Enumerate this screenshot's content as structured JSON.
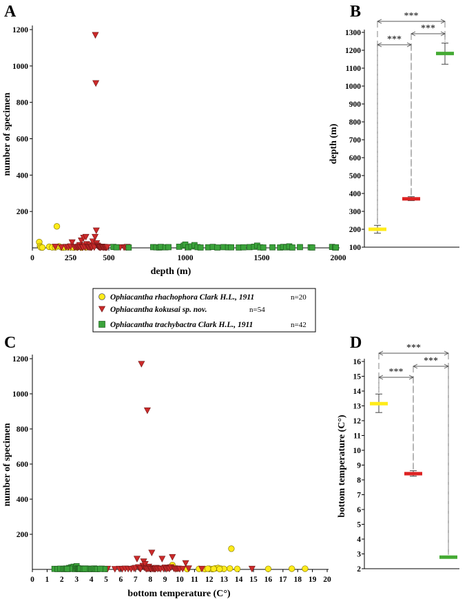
{
  "legend": {
    "entries": [
      {
        "name": "Ophiacantha rhachophora Clark H.L., 1911",
        "n": "n=20",
        "color": "#ffeb1a",
        "marker": "circle"
      },
      {
        "name": "Ophiacantha kokusai sp. nov.",
        "n": "n=54",
        "color": "#cc2a2a",
        "marker": "triangle-down"
      },
      {
        "name": "Ophiacantha trachybactra Clark H.L., 1911",
        "n": "n=42",
        "color": "#3aa33a",
        "marker": "square"
      }
    ]
  },
  "chart_data": [
    {
      "panel": "A",
      "type": "scatter",
      "xlabel": "depth (m)",
      "ylabel": "number of specimen",
      "xlim": [
        0,
        2000
      ],
      "ylim": [
        0,
        1200
      ],
      "xticks": [
        "0",
        "250",
        "500",
        "1000",
        "1500",
        "2000"
      ],
      "yticks": [
        "200",
        "400",
        "600",
        "800",
        "1000",
        "1200"
      ],
      "series": [
        {
          "name": "Ophiacantha rhachophora Clark H.L., 1911",
          "marker": "circle",
          "color": "#ffeb1a",
          "points": [
            [
              45,
              32
            ],
            [
              50,
              10
            ],
            [
              55,
              3
            ],
            [
              65,
              2
            ],
            [
              110,
              6
            ],
            [
              130,
              3
            ],
            [
              150,
              3
            ],
            [
              160,
              118
            ],
            [
              175,
              8
            ],
            [
              190,
              3
            ],
            [
              200,
              2
            ],
            [
              215,
              3
            ],
            [
              230,
              4
            ],
            [
              250,
              3
            ],
            [
              270,
              2
            ],
            [
              290,
              3
            ],
            [
              300,
              6
            ],
            [
              320,
              2
            ],
            [
              350,
              3
            ],
            [
              380,
              4
            ]
          ]
        },
        {
          "name": "Ophiacantha kokusai sp. nov.",
          "marker": "triangle-down",
          "color": "#cc2a2a",
          "points": [
            [
              150,
              6
            ],
            [
              190,
              3
            ],
            [
              220,
              5
            ],
            [
              235,
              3
            ],
            [
              250,
              8
            ],
            [
              260,
              30
            ],
            [
              275,
              3
            ],
            [
              285,
              5
            ],
            [
              295,
              2
            ],
            [
              300,
              4
            ],
            [
              305,
              8
            ],
            [
              310,
              15
            ],
            [
              315,
              2
            ],
            [
              320,
              40
            ],
            [
              325,
              5
            ],
            [
              330,
              2
            ],
            [
              335,
              55
            ],
            [
              340,
              12
            ],
            [
              345,
              3
            ],
            [
              350,
              60
            ],
            [
              355,
              20
            ],
            [
              360,
              4
            ],
            [
              365,
              7
            ],
            [
              370,
              2
            ],
            [
              375,
              15
            ],
            [
              380,
              3
            ],
            [
              385,
              2
            ],
            [
              390,
              5
            ],
            [
              395,
              35
            ],
            [
              400,
              10
            ],
            [
              405,
              3
            ],
            [
              410,
              60
            ],
            [
              412,
              1170
            ],
            [
              415,
              905
            ],
            [
              418,
              95
            ],
            [
              420,
              25
            ],
            [
              425,
              12
            ],
            [
              430,
              8
            ],
            [
              435,
              5
            ],
            [
              440,
              3
            ],
            [
              445,
              2
            ],
            [
              450,
              4
            ],
            [
              455,
              6
            ],
            [
              460,
              3
            ],
            [
              465,
              2
            ],
            [
              470,
              5
            ],
            [
              475,
              2
            ],
            [
              480,
              3
            ],
            [
              485,
              2
            ],
            [
              490,
              4
            ],
            [
              575,
              3
            ],
            [
              600,
              2
            ],
            [
              610,
              3
            ],
            [
              620,
              5
            ]
          ]
        },
        {
          "name": "Ophiacantha trachybactra Clark H.L., 1911",
          "marker": "square",
          "color": "#3aa33a",
          "points": [
            [
              530,
              5
            ],
            [
              550,
              3
            ],
            [
              630,
              2
            ],
            [
              790,
              4
            ],
            [
              810,
              3
            ],
            [
              830,
              2
            ],
            [
              840,
              5
            ],
            [
              870,
              3
            ],
            [
              890,
              4
            ],
            [
              960,
              6
            ],
            [
              990,
              12
            ],
            [
              1000,
              18
            ],
            [
              1020,
              3
            ],
            [
              1040,
              8
            ],
            [
              1060,
              15
            ],
            [
              1080,
              4
            ],
            [
              1100,
              2
            ],
            [
              1150,
              3
            ],
            [
              1180,
              5
            ],
            [
              1210,
              2
            ],
            [
              1250,
              4
            ],
            [
              1280,
              3
            ],
            [
              1300,
              3
            ],
            [
              1350,
              2
            ],
            [
              1380,
              3
            ],
            [
              1420,
              4
            ],
            [
              1450,
              6
            ],
            [
              1470,
              12
            ],
            [
              1490,
              3
            ],
            [
              1510,
              2
            ],
            [
              1570,
              3
            ],
            [
              1620,
              2
            ],
            [
              1640,
              5
            ],
            [
              1660,
              3
            ],
            [
              1680,
              8
            ],
            [
              1700,
              2
            ],
            [
              1750,
              4
            ],
            [
              1820,
              3
            ],
            [
              1830,
              2
            ],
            [
              1960,
              5
            ],
            [
              1980,
              2
            ],
            [
              1985,
              3
            ]
          ]
        }
      ]
    },
    {
      "panel": "B",
      "type": "scatter",
      "subtype": "mean-with-error",
      "ylabel": "depth (m)",
      "ylim": [
        100,
        1300
      ],
      "yticks": [
        "100",
        "200",
        "300",
        "400",
        "500",
        "600",
        "700",
        "800",
        "900",
        "1000",
        "1100",
        "1200",
        "1300"
      ],
      "groups": [
        {
          "color": "#ffeb1a",
          "mean": 200,
          "low": 178,
          "high": 222
        },
        {
          "color": "#dd2222",
          "mean": 370,
          "low": 360,
          "high": 382
        },
        {
          "color": "#44aa33",
          "mean": 1182,
          "low": 1122,
          "high": 1240
        }
      ],
      "significance": [
        {
          "from": 0,
          "to": 1,
          "label": "***"
        },
        {
          "from": 1,
          "to": 2,
          "label": "***"
        },
        {
          "from": 0,
          "to": 2,
          "label": "***"
        }
      ]
    },
    {
      "panel": "C",
      "type": "scatter",
      "xlabel": "bottom temperature (C°)",
      "ylabel": "number of specimen",
      "xlim": [
        0,
        20
      ],
      "ylim": [
        0,
        1200
      ],
      "xticks": [
        "0",
        "1",
        "2",
        "3",
        "4",
        "5",
        "6",
        "7",
        "8",
        "9",
        "10",
        "11",
        "12",
        "13",
        "14",
        "15",
        "16",
        "17",
        "18",
        "19",
        "20"
      ],
      "yticks": [
        "200",
        "400",
        "600",
        "800",
        "1000",
        "1200"
      ],
      "series": [
        {
          "name": "Ophiacantha rhachophora Clark H.L., 1911",
          "marker": "circle",
          "color": "#ffeb1a",
          "points": [
            [
              9.5,
              25
            ],
            [
              9.8,
              5
            ],
            [
              10.5,
              2
            ],
            [
              11.3,
              3
            ],
            [
              11.7,
              2
            ],
            [
              12.0,
              4
            ],
            [
              12.2,
              2
            ],
            [
              12.4,
              6
            ],
            [
              12.6,
              8
            ],
            [
              12.8,
              4
            ],
            [
              13.0,
              3
            ],
            [
              13.5,
              118
            ],
            [
              13.4,
              5
            ],
            [
              13.9,
              3
            ],
            [
              11.9,
              4
            ],
            [
              12.3,
              3
            ],
            [
              12.7,
              2
            ],
            [
              16.0,
              3
            ],
            [
              17.6,
              4
            ],
            [
              18.5,
              4
            ]
          ]
        },
        {
          "name": "Ophiacantha kokusai sp. nov.",
          "marker": "triangle-down",
          "color": "#cc2a2a",
          "points": [
            [
              5.1,
              3
            ],
            [
              5.6,
              2
            ],
            [
              5.9,
              3
            ],
            [
              6.1,
              2
            ],
            [
              6.3,
              4
            ],
            [
              6.5,
              3
            ],
            [
              6.7,
              2
            ],
            [
              6.9,
              5
            ],
            [
              7.0,
              8
            ],
            [
              7.1,
              60
            ],
            [
              7.2,
              12
            ],
            [
              7.3,
              3
            ],
            [
              7.35,
              4
            ],
            [
              7.4,
              1170
            ],
            [
              7.5,
              20
            ],
            [
              7.55,
              45
            ],
            [
              7.6,
              10
            ],
            [
              7.65,
              30
            ],
            [
              7.7,
              5
            ],
            [
              7.75,
              2
            ],
            [
              7.8,
              905
            ],
            [
              7.85,
              3
            ],
            [
              7.9,
              15
            ],
            [
              7.95,
              4
            ],
            [
              8.0,
              7
            ],
            [
              8.05,
              2
            ],
            [
              8.1,
              95
            ],
            [
              8.15,
              3
            ],
            [
              8.2,
              6
            ],
            [
              8.25,
              2
            ],
            [
              8.3,
              4
            ],
            [
              8.35,
              2
            ],
            [
              8.4,
              8
            ],
            [
              8.5,
              3
            ],
            [
              8.6,
              5
            ],
            [
              8.7,
              2
            ],
            [
              8.8,
              60
            ],
            [
              8.9,
              3
            ],
            [
              9.0,
              10
            ],
            [
              9.1,
              2
            ],
            [
              9.2,
              6
            ],
            [
              9.3,
              3
            ],
            [
              9.4,
              12
            ],
            [
              9.5,
              70
            ],
            [
              9.6,
              5
            ],
            [
              9.7,
              2
            ],
            [
              9.8,
              3
            ],
            [
              9.9,
              4
            ],
            [
              10.0,
              2
            ],
            [
              10.2,
              3
            ],
            [
              10.4,
              35
            ],
            [
              10.6,
              5
            ],
            [
              11.5,
              3
            ],
            [
              14.9,
              3
            ]
          ]
        },
        {
          "name": "Ophiacantha trachybactra Clark H.L., 1911",
          "marker": "square",
          "color": "#3aa33a",
          "points": [
            [
              1.5,
              3
            ],
            [
              1.7,
              2
            ],
            [
              1.9,
              4
            ],
            [
              2.1,
              2
            ],
            [
              2.2,
              3
            ],
            [
              2.3,
              5
            ],
            [
              2.4,
              2
            ],
            [
              2.5,
              8
            ],
            [
              2.6,
              3
            ],
            [
              2.65,
              12
            ],
            [
              2.7,
              4
            ],
            [
              2.75,
              6
            ],
            [
              2.8,
              15
            ],
            [
              2.85,
              3
            ],
            [
              2.9,
              2
            ],
            [
              2.95,
              10
            ],
            [
              3.0,
              18
            ],
            [
              3.05,
              4
            ],
            [
              3.1,
              6
            ],
            [
              3.15,
              3
            ],
            [
              3.2,
              2
            ],
            [
              3.3,
              4
            ],
            [
              3.4,
              2
            ],
            [
              3.5,
              3
            ],
            [
              3.6,
              5
            ],
            [
              3.7,
              2
            ],
            [
              3.8,
              3
            ],
            [
              3.9,
              4
            ],
            [
              4.0,
              2
            ],
            [
              4.1,
              3
            ],
            [
              4.2,
              5
            ],
            [
              4.3,
              2
            ],
            [
              4.5,
              3
            ],
            [
              4.7,
              4
            ],
            [
              4.9,
              2
            ],
            [
              3.25,
              5
            ],
            [
              2.55,
              4
            ],
            [
              2.35,
              3
            ],
            [
              3.45,
              2
            ],
            [
              3.55,
              3
            ],
            [
              4.4,
              2
            ],
            [
              4.6,
              3
            ]
          ]
        }
      ]
    },
    {
      "panel": "D",
      "type": "scatter",
      "subtype": "mean-with-error",
      "ylabel": "bottom temperature (C°)",
      "ylim": [
        2,
        16
      ],
      "yticks": [
        "2",
        "3",
        "4",
        "5",
        "6",
        "7",
        "8",
        "9",
        "10",
        "11",
        "12",
        "13",
        "14",
        "15",
        "16"
      ],
      "groups": [
        {
          "color": "#ffeb1a",
          "mean": 13.15,
          "low": 12.55,
          "high": 13.8
        },
        {
          "color": "#dd2222",
          "mean": 8.42,
          "low": 8.25,
          "high": 8.62
        },
        {
          "color": "#44aa33",
          "mean": 2.78,
          "low": 2.72,
          "high": 2.85
        }
      ],
      "significance": [
        {
          "from": 0,
          "to": 1,
          "label": "***"
        },
        {
          "from": 1,
          "to": 2,
          "label": "***"
        },
        {
          "from": 0,
          "to": 2,
          "label": "***"
        }
      ]
    }
  ]
}
